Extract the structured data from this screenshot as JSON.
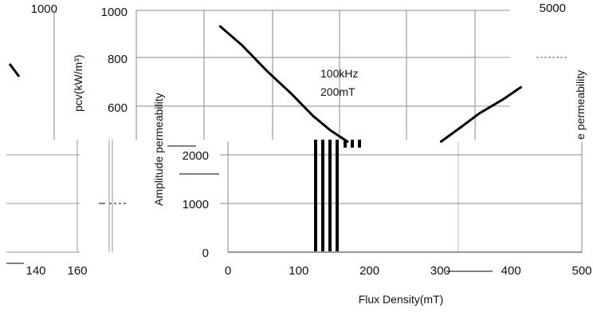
{
  "chart_data": [
    {
      "type": "line",
      "title": "",
      "xlabel": "",
      "ylabel": "pcv(kW/m³)",
      "ylim": [
        400,
        1000
      ],
      "yticks": [
        600,
        800,
        1000
      ],
      "grid": true,
      "annotation": [
        "100kHz",
        "200mT"
      ],
      "series": [
        {
          "x": [
            -12,
            20,
            55,
            90,
            120,
            145,
            170
          ],
          "y": [
            930,
            850,
            745,
            650,
            560,
            500,
            452
          ]
        },
        {
          "x": [
            300,
            330,
            355,
            390,
            415
          ],
          "y": [
            452,
            515,
            570,
            630,
            680
          ]
        }
      ]
    },
    {
      "type": "line",
      "xlabel": "Flux Density(mT)",
      "ylabel": "Amplitude permeability",
      "xlim": [
        0,
        500
      ],
      "xticks": [
        0,
        100,
        200,
        300,
        400,
        500
      ],
      "ylim": [
        0,
        2300
      ],
      "yticks": [
        0,
        1000,
        2000
      ],
      "grid": true
    },
    {
      "type": "line",
      "ylim": [
        0,
        5000
      ],
      "yticks": [
        5000
      ],
      "grid": true
    },
    {
      "type": "line",
      "ylim": [
        0,
        1000
      ],
      "yticks": [
        1000
      ],
      "xticks": [
        140,
        160
      ],
      "grid": true
    }
  ],
  "text": {
    "temp_tail": "e permeability"
  }
}
